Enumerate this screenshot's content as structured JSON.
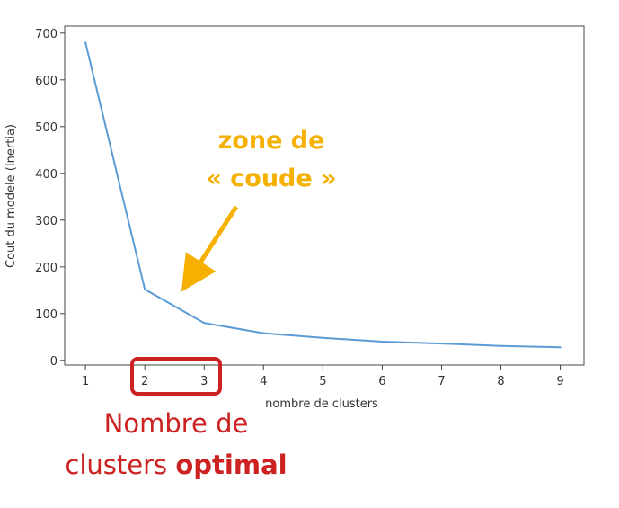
{
  "chart_data": {
    "type": "line",
    "x": [
      1,
      2,
      3,
      4,
      5,
      6,
      7,
      8,
      9
    ],
    "series": [
      {
        "values": [
          680,
          152,
          80,
          58,
          48,
          40,
          36,
          31,
          28
        ]
      }
    ],
    "xlabel": "nombre de clusters",
    "ylabel": "Cout du modele (Inertia)",
    "xticks": [
      "1",
      "2",
      "3",
      "4",
      "5",
      "6",
      "7",
      "8",
      "9"
    ],
    "yticks": [
      "0",
      "100",
      "200",
      "300",
      "400",
      "500",
      "600",
      "700"
    ],
    "xlim": [
      0.65,
      9.4
    ],
    "ylim": [
      -10,
      715
    ],
    "grid": false,
    "line_color": "#5b9bd5"
  },
  "annotations": {
    "elbow_line1": "zone de",
    "elbow_line2": "« coude »",
    "optimal_part1": "Nombre de",
    "optimal_part2": "clusters ",
    "optimal_part3": "optimal",
    "orange_color": "#f5b000",
    "red_color": "#cc2222",
    "highlighted_ticks": [
      "2",
      "3"
    ]
  }
}
